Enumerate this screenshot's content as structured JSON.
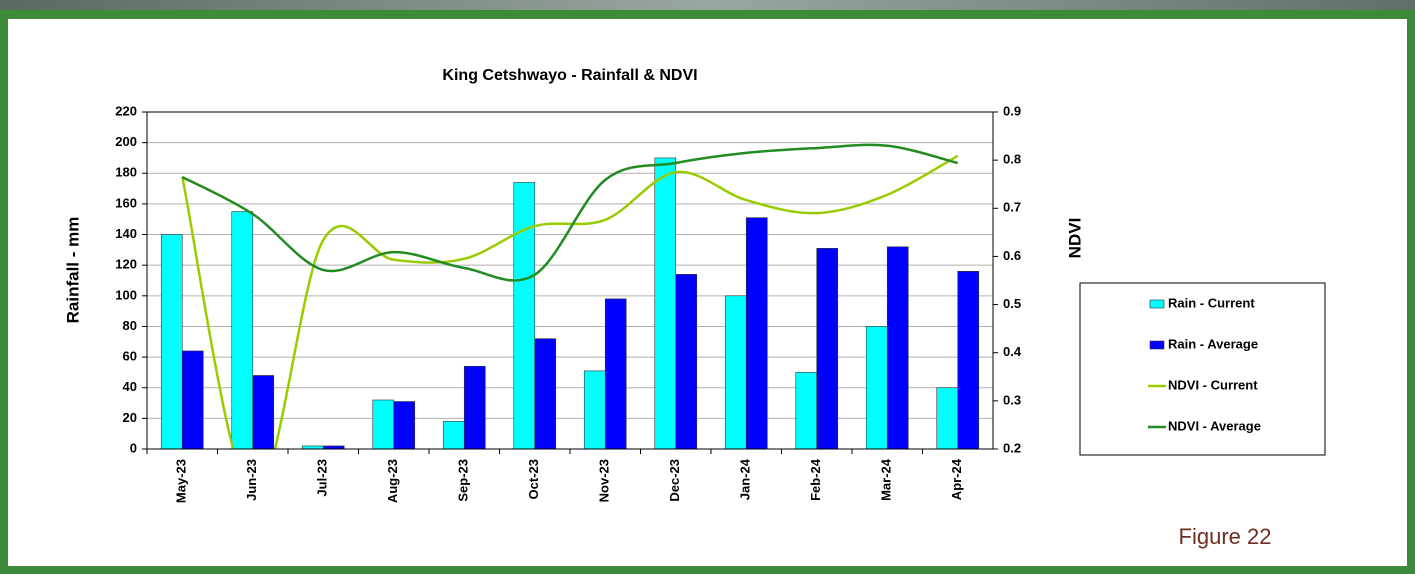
{
  "chart_data": {
    "type": "bar",
    "title": "King Cetshwayo - Rainfall & NDVI",
    "y_label": "Rainfall - mm",
    "y2_label": "NDVI",
    "categories": [
      "May-23",
      "Jun-23",
      "Jul-23",
      "Aug-23",
      "Sep-23",
      "Oct-23",
      "Nov-23",
      "Dec-23",
      "Jan-24",
      "Feb-24",
      "Mar-24",
      "Apr-24"
    ],
    "series": [
      {
        "name": "Rain - Current",
        "type": "bar",
        "color": "#00ffff",
        "values": [
          140,
          155,
          2,
          32,
          18,
          174,
          51,
          190,
          100,
          50,
          80,
          40
        ]
      },
      {
        "name": "Rain - Average",
        "type": "bar",
        "color": "#0000ff",
        "values": [
          64,
          48,
          2,
          31,
          54,
          72,
          98,
          114,
          151,
          131,
          132,
          116
        ]
      },
      {
        "name": "NDVI - Current",
        "type": "line",
        "axis": "y2",
        "color": "#99cc00",
        "values": [
          0.765,
          0.1,
          0.634,
          0.593,
          0.595,
          0.663,
          0.676,
          0.775,
          0.717,
          0.69,
          0.728,
          0.809
        ]
      },
      {
        "name": "NDVI - Average",
        "type": "line",
        "axis": "y2",
        "color": "#228b22",
        "values": [
          0.765,
          0.688,
          0.572,
          0.609,
          0.576,
          0.562,
          0.759,
          0.794,
          0.815,
          0.825,
          0.83,
          0.794
        ]
      }
    ],
    "ylim": [
      0,
      220
    ],
    "yticks": [
      0,
      20,
      40,
      60,
      80,
      100,
      120,
      140,
      160,
      180,
      200,
      220
    ],
    "y2lim": [
      0.2,
      0.9
    ],
    "y2ticks": [
      0.2,
      0.3,
      0.4,
      0.5,
      0.6,
      0.7,
      0.8,
      0.9
    ],
    "grid": true,
    "legend": "right"
  },
  "figure_label": "Figure 22"
}
